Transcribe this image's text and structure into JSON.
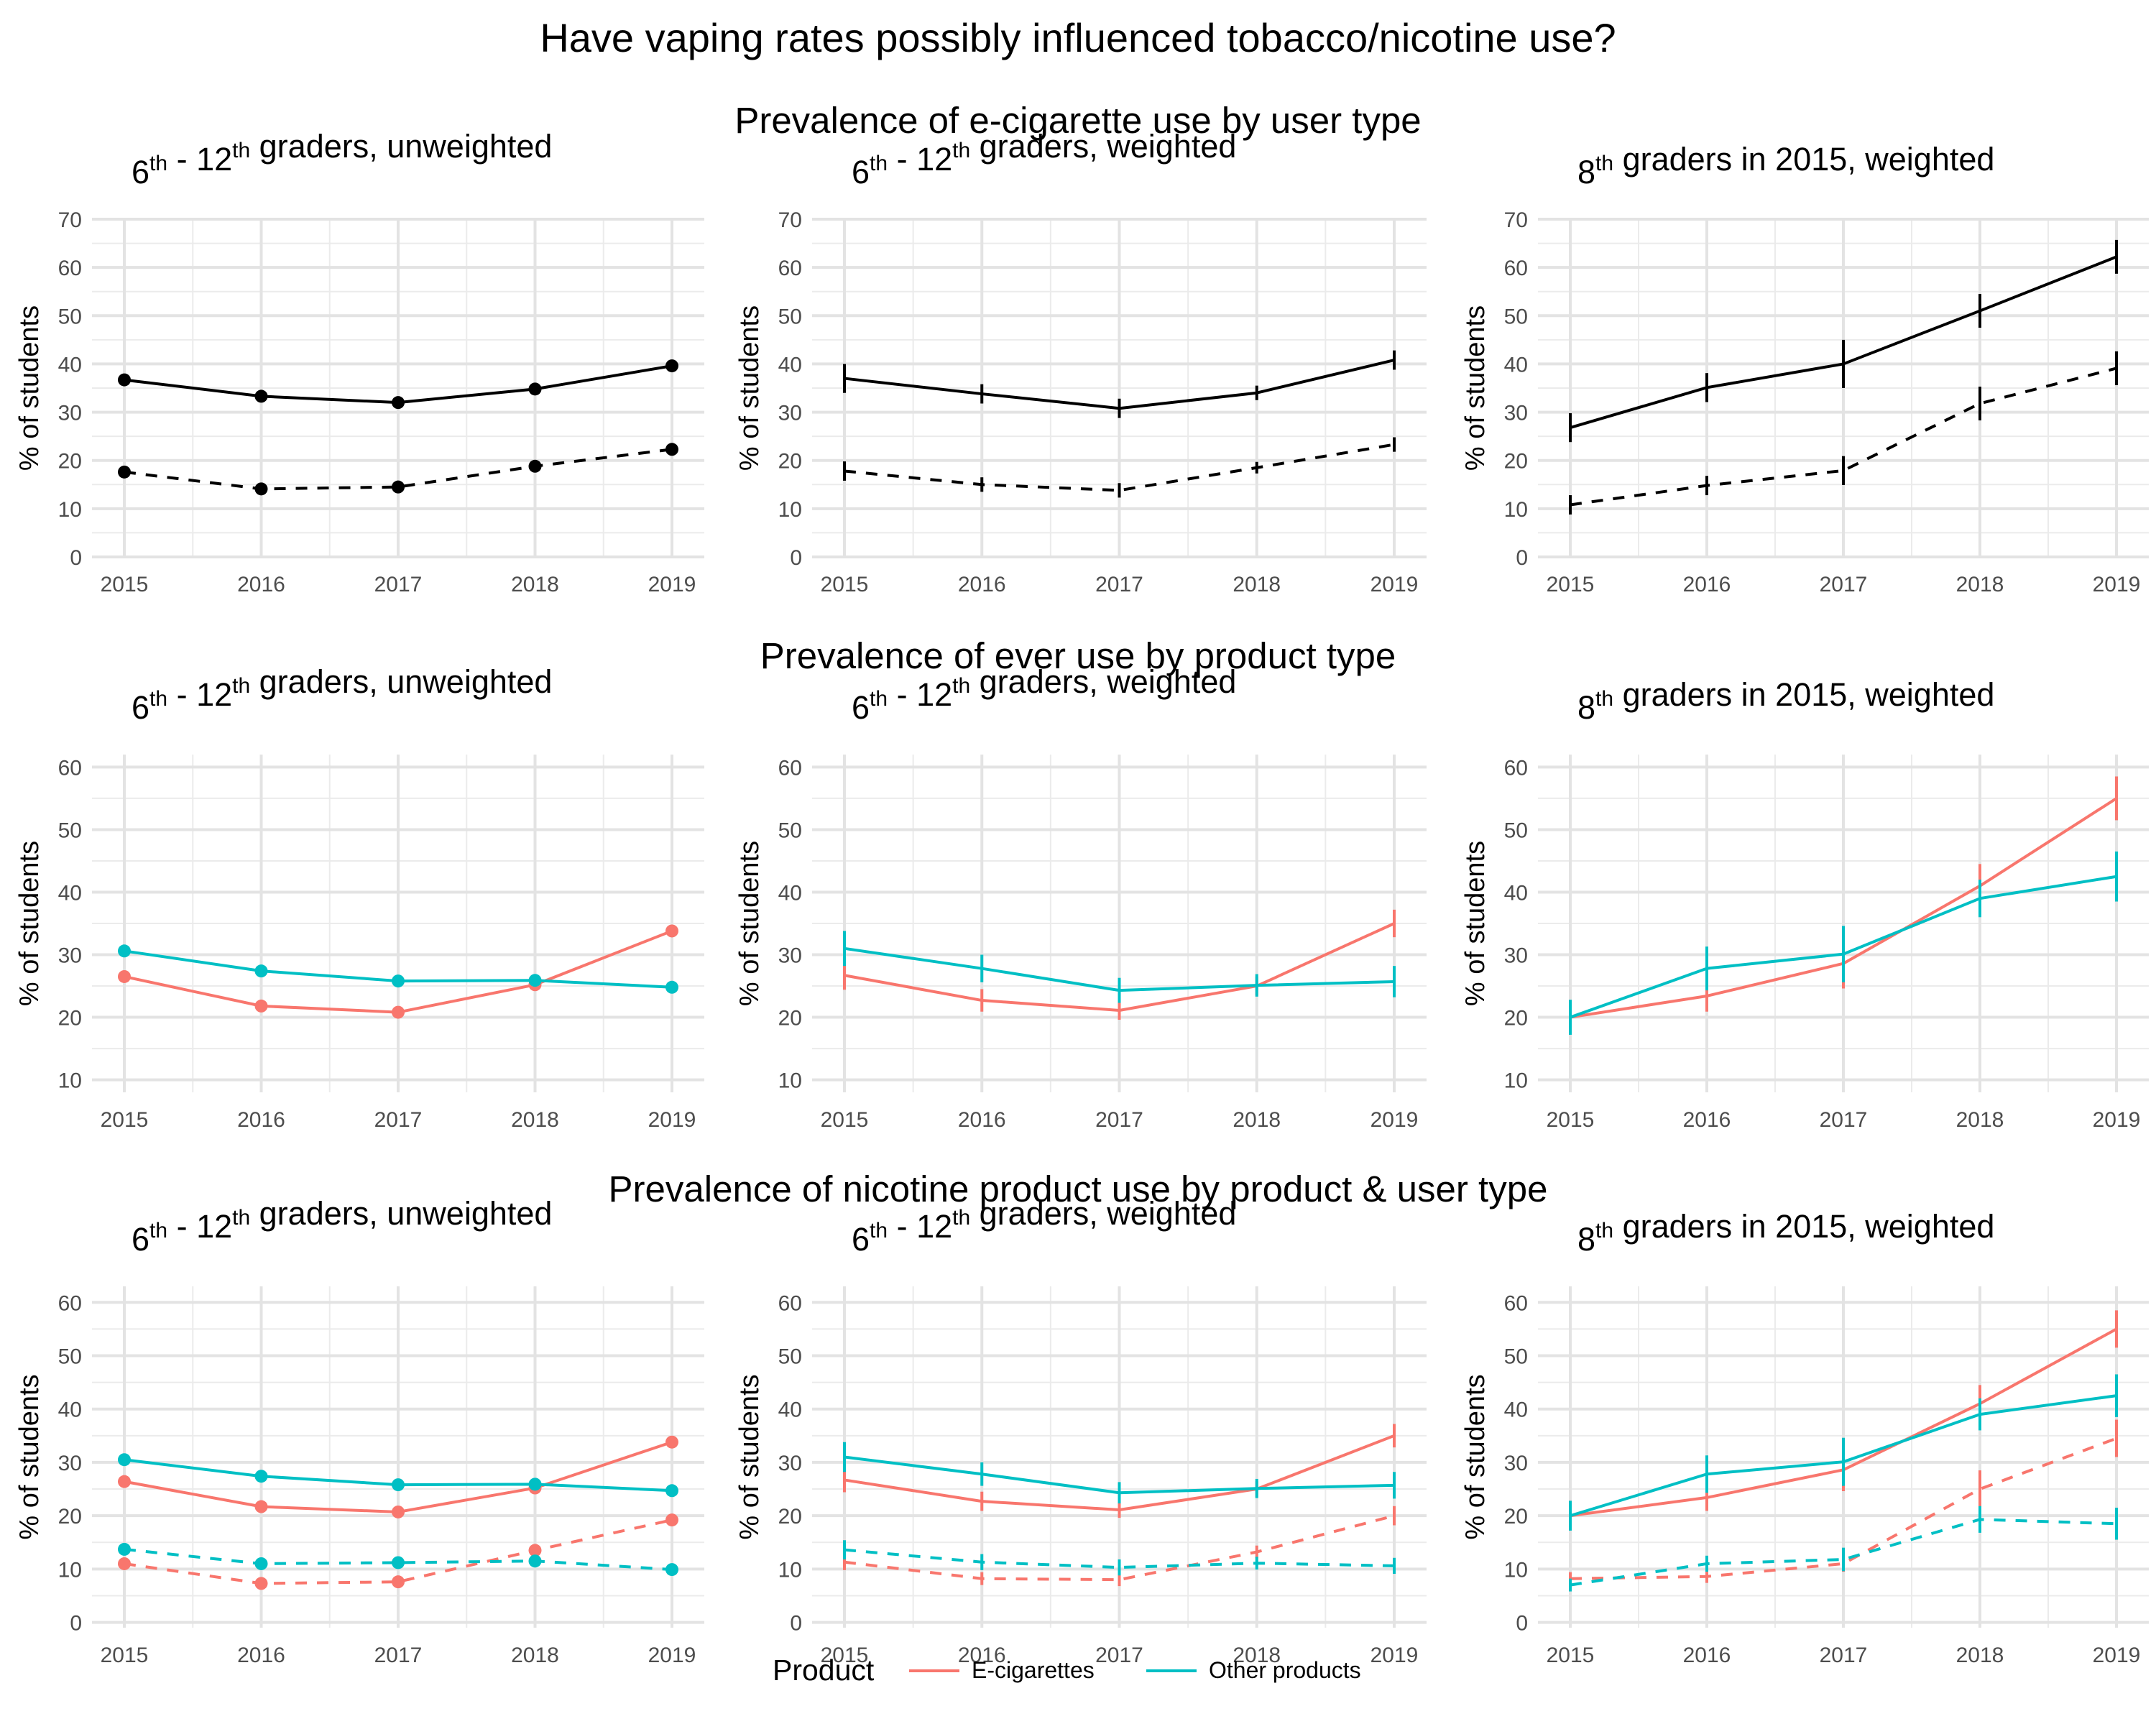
{
  "title": "Have vaping rates possibly influenced tobacco/nicotine use?",
  "colors": {
    "ecig": "#F8766D",
    "other": "#00BFC4",
    "black": "#000000"
  },
  "legend": {
    "title": "Product",
    "items": [
      {
        "label": "E-cigarettes",
        "color": "#F8766D"
      },
      {
        "label": "Other products",
        "color": "#00BFC4"
      }
    ]
  },
  "chart_data": [
    {
      "type": "line",
      "row_title": "Prevalence of e-cigarette use by user type",
      "title": "6th - 12th graders, unweighted",
      "ylabel": "% of students",
      "x": [
        2015,
        2016,
        2017,
        2018,
        2019
      ],
      "ylim": [
        0,
        70
      ],
      "yticks": [
        0,
        10,
        20,
        30,
        40,
        50,
        60,
        70
      ],
      "markers": "points",
      "series": [
        {
          "key": "a",
          "color": "#000000",
          "dashed": false,
          "values": [
            36.7,
            33.3,
            32.0,
            34.8,
            39.6
          ]
        },
        {
          "key": "b",
          "color": "#000000",
          "dashed": true,
          "values": [
            17.6,
            14.1,
            14.5,
            18.8,
            22.3
          ]
        }
      ]
    },
    {
      "type": "line",
      "row_title": "",
      "title": "6th - 12th graders, weighted",
      "ylabel": "% of students",
      "x": [
        2015,
        2016,
        2017,
        2018,
        2019
      ],
      "ylim": [
        0,
        70
      ],
      "yticks": [
        0,
        10,
        20,
        30,
        40,
        50,
        60,
        70
      ],
      "markers": "errorbars",
      "series": [
        {
          "key": "a",
          "color": "#000000",
          "dashed": false,
          "values": [
            37.0,
            33.8,
            30.8,
            34.0,
            40.8
          ],
          "err": [
            3.0,
            2.0,
            2.0,
            1.5,
            2.0
          ]
        },
        {
          "key": "b",
          "color": "#000000",
          "dashed": true,
          "values": [
            17.8,
            15.0,
            13.8,
            18.5,
            23.3
          ],
          "err": [
            2.0,
            1.5,
            1.5,
            1.2,
            1.5
          ]
        }
      ]
    },
    {
      "type": "line",
      "row_title": "",
      "title": "8th graders in 2015, weighted",
      "ylabel": "% of students",
      "x": [
        2015,
        2016,
        2017,
        2018,
        2019
      ],
      "ylim": [
        0,
        70
      ],
      "yticks": [
        0,
        10,
        20,
        30,
        40,
        50,
        60,
        70
      ],
      "markers": "errorbars",
      "series": [
        {
          "key": "a",
          "color": "#000000",
          "dashed": false,
          "values": [
            26.8,
            35.1,
            40.0,
            51.0,
            62.2
          ],
          "err": [
            3.0,
            3.0,
            5.0,
            3.5,
            3.5
          ]
        },
        {
          "key": "b",
          "color": "#000000",
          "dashed": true,
          "values": [
            10.8,
            14.8,
            17.9,
            31.8,
            39.1
          ],
          "err": [
            2.0,
            2.0,
            3.0,
            3.5,
            3.5
          ]
        }
      ]
    },
    {
      "type": "line",
      "row_title": "Prevalence of ever use by product type",
      "title": "6th - 12th graders, unweighted",
      "ylabel": "% of students",
      "x": [
        2015,
        2016,
        2017,
        2018,
        2019
      ],
      "ylim": [
        8,
        62
      ],
      "yticks": [
        10,
        20,
        30,
        40,
        50,
        60
      ],
      "markers": "points",
      "series": [
        {
          "key": "ecig",
          "color": "#F8766D",
          "dashed": false,
          "values": [
            26.5,
            21.8,
            20.8,
            25.2,
            33.8
          ]
        },
        {
          "key": "other",
          "color": "#00BFC4",
          "dashed": false,
          "values": [
            30.6,
            27.4,
            25.8,
            25.9,
            24.8
          ]
        }
      ]
    },
    {
      "type": "line",
      "row_title": "",
      "title": "6th - 12th graders, weighted",
      "ylabel": "% of students",
      "x": [
        2015,
        2016,
        2017,
        2018,
        2019
      ],
      "ylim": [
        8,
        62
      ],
      "yticks": [
        10,
        20,
        30,
        40,
        50,
        60
      ],
      "markers": "errorbars",
      "series": [
        {
          "key": "ecig",
          "color": "#F8766D",
          "dashed": false,
          "values": [
            26.7,
            22.7,
            21.1,
            25.0,
            35.0
          ],
          "err": [
            2.3,
            1.8,
            1.5,
            1.5,
            2.2
          ]
        },
        {
          "key": "other",
          "color": "#00BFC4",
          "dashed": false,
          "values": [
            31.0,
            27.8,
            24.3,
            25.1,
            25.7
          ],
          "err": [
            2.8,
            2.2,
            2.0,
            1.8,
            2.5
          ]
        }
      ]
    },
    {
      "type": "line",
      "row_title": "",
      "title": "8th graders in 2015, weighted",
      "ylabel": "% of students",
      "x": [
        2015,
        2016,
        2017,
        2018,
        2019
      ],
      "ylim": [
        8,
        62
      ],
      "yticks": [
        10,
        20,
        30,
        40,
        50,
        60
      ],
      "markers": "errorbars",
      "series": [
        {
          "key": "ecig",
          "color": "#F8766D",
          "dashed": false,
          "values": [
            20.0,
            23.4,
            28.6,
            41.0,
            55.0
          ],
          "err": [
            2.5,
            2.5,
            4.0,
            3.5,
            3.5
          ]
        },
        {
          "key": "other",
          "color": "#00BFC4",
          "dashed": false,
          "values": [
            20.0,
            27.8,
            30.1,
            39.0,
            42.5
          ],
          "err": [
            2.8,
            3.5,
            4.5,
            3.0,
            4.0
          ]
        }
      ]
    },
    {
      "type": "line",
      "row_title": "Prevalence of nicotine product use by product & user type",
      "title": "6th - 12th graders, unweighted",
      "ylabel": "% of students",
      "x": [
        2015,
        2016,
        2017,
        2018,
        2019
      ],
      "ylim": [
        -1,
        63
      ],
      "yticks": [
        0,
        10,
        20,
        30,
        40,
        50,
        60
      ],
      "markers": "points",
      "series": [
        {
          "key": "ecig-a",
          "color": "#F8766D",
          "dashed": false,
          "values": [
            26.4,
            21.7,
            20.7,
            25.2,
            33.8
          ]
        },
        {
          "key": "other-a",
          "color": "#00BFC4",
          "dashed": false,
          "values": [
            30.5,
            27.4,
            25.8,
            25.9,
            24.7
          ]
        },
        {
          "key": "ecig-b",
          "color": "#F8766D",
          "dashed": true,
          "values": [
            11.0,
            7.3,
            7.6,
            13.5,
            19.2
          ]
        },
        {
          "key": "other-b",
          "color": "#00BFC4",
          "dashed": true,
          "values": [
            13.7,
            11.0,
            11.2,
            11.5,
            9.9
          ]
        }
      ]
    },
    {
      "type": "line",
      "row_title": "",
      "title": "6th - 12th graders, weighted",
      "ylabel": "% of students",
      "x": [
        2015,
        2016,
        2017,
        2018,
        2019
      ],
      "ylim": [
        -1,
        63
      ],
      "yticks": [
        0,
        10,
        20,
        30,
        40,
        50,
        60
      ],
      "markers": "errorbars",
      "series": [
        {
          "key": "ecig-a",
          "color": "#F8766D",
          "dashed": false,
          "values": [
            26.7,
            22.7,
            21.1,
            25.0,
            35.0
          ],
          "err": [
            2.3,
            1.8,
            1.5,
            1.5,
            2.2
          ]
        },
        {
          "key": "other-a",
          "color": "#00BFC4",
          "dashed": false,
          "values": [
            31.0,
            27.8,
            24.3,
            25.1,
            25.7
          ],
          "err": [
            2.8,
            2.2,
            2.0,
            1.8,
            2.5
          ]
        },
        {
          "key": "ecig-b",
          "color": "#F8766D",
          "dashed": true,
          "values": [
            11.3,
            8.2,
            8.0,
            13.2,
            20.0
          ],
          "err": [
            1.5,
            1.2,
            1.2,
            1.2,
            1.8
          ]
        },
        {
          "key": "other-b",
          "color": "#00BFC4",
          "dashed": true,
          "values": [
            13.6,
            11.3,
            10.3,
            11.1,
            10.6
          ],
          "err": [
            1.8,
            1.5,
            1.5,
            1.2,
            1.5
          ]
        }
      ]
    },
    {
      "type": "line",
      "row_title": "",
      "title": "8th graders in 2015, weighted",
      "ylabel": "% of students",
      "x": [
        2015,
        2016,
        2017,
        2018,
        2019
      ],
      "ylim": [
        -1,
        63
      ],
      "yticks": [
        0,
        10,
        20,
        30,
        40,
        50,
        60
      ],
      "markers": "errorbars",
      "series": [
        {
          "key": "ecig-a",
          "color": "#F8766D",
          "dashed": false,
          "values": [
            20.0,
            23.4,
            28.6,
            41.0,
            55.0
          ],
          "err": [
            2.5,
            2.5,
            4.0,
            3.5,
            3.5
          ]
        },
        {
          "key": "other-a",
          "color": "#00BFC4",
          "dashed": false,
          "values": [
            20.0,
            27.8,
            30.1,
            39.0,
            42.5
          ],
          "err": [
            2.8,
            3.5,
            4.5,
            3.0,
            4.0
          ]
        },
        {
          "key": "ecig-b",
          "color": "#F8766D",
          "dashed": true,
          "values": [
            8.2,
            8.6,
            11.0,
            25.0,
            34.5
          ],
          "err": [
            1.2,
            1.2,
            1.5,
            3.5,
            3.5
          ]
        },
        {
          "key": "other-b",
          "color": "#00BFC4",
          "dashed": true,
          "values": [
            7.0,
            11.0,
            11.8,
            19.3,
            18.5
          ],
          "err": [
            1.2,
            1.5,
            2.2,
            2.5,
            3.0
          ]
        }
      ]
    }
  ]
}
